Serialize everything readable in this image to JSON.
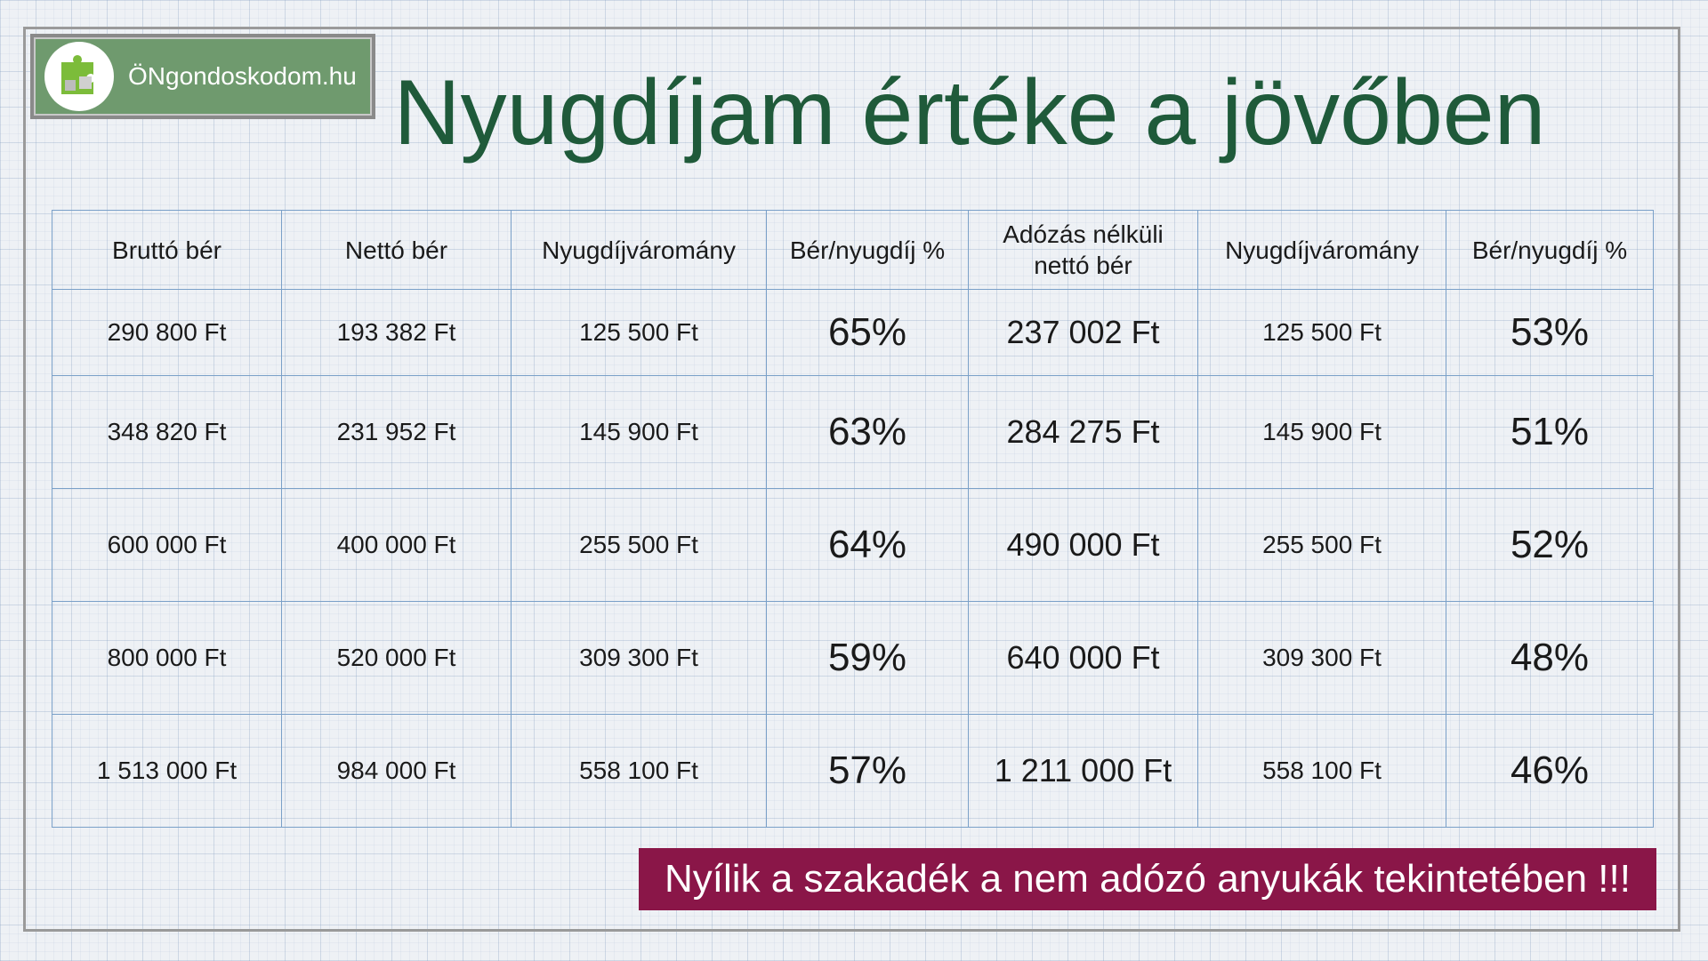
{
  "logo": {
    "text": "ÖNgondoskodom.hu",
    "icon": "puzzle-logo-icon"
  },
  "title": "Nyugdíjam értéke a jövőben",
  "table": {
    "headers": [
      "Bruttó bér",
      "Nettó bér",
      "Nyugdíjváromány",
      "Bér/nyugdíj %",
      "Adózás nélküli nettó bér",
      "Nyugdíjváromány",
      "Bér/nyugdíj %"
    ],
    "rows": [
      [
        "290 800 Ft",
        "193 382 Ft",
        "125 500 Ft",
        "65%",
        "237 002 Ft",
        "125 500 Ft",
        "53%"
      ],
      [
        "348 820 Ft",
        "231 952 Ft",
        "145 900 Ft",
        "63%",
        "284 275 Ft",
        "145 900 Ft",
        "51%"
      ],
      [
        "600 000 Ft",
        "400 000 Ft",
        "255 500 Ft",
        "64%",
        "490 000 Ft",
        "255 500 Ft",
        "52%"
      ],
      [
        "800 000 Ft",
        "520 000 Ft",
        "309 300 Ft",
        "59%",
        "640 000 Ft",
        "309 300 Ft",
        "48%"
      ],
      [
        "1 513 000 Ft",
        "984 000 Ft",
        "558 100 Ft",
        "57%",
        "1 211 000 Ft",
        "558 100 Ft",
        "46%"
      ]
    ]
  },
  "banner": "Nyílik a szakadék a nem adózó anyukák tekintetében !!!",
  "colors": {
    "title": "#1f5a3a",
    "logo_bg": "#6f9a6e",
    "banner_bg": "#8a1648",
    "table_border": "#7aa0c8"
  }
}
